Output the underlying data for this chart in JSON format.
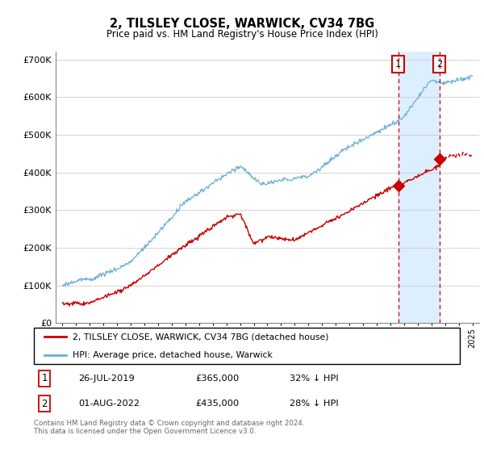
{
  "title": "2, TILSLEY CLOSE, WARWICK, CV34 7BG",
  "subtitle": "Price paid vs. HM Land Registry's House Price Index (HPI)",
  "legend_label_red": "2, TILSLEY CLOSE, WARWICK, CV34 7BG (detached house)",
  "legend_label_blue": "HPI: Average price, detached house, Warwick",
  "footnote": "Contains HM Land Registry data © Crown copyright and database right 2024.\nThis data is licensed under the Open Government Licence v3.0.",
  "transaction1_date": "26-JUL-2019",
  "transaction1_price": "£365,000",
  "transaction1_hpi": "32% ↓ HPI",
  "transaction2_date": "01-AUG-2022",
  "transaction2_price": "£435,000",
  "transaction2_hpi": "28% ↓ HPI",
  "hpi_color": "#6baed6",
  "price_color": "#cc0000",
  "shade_color": "#ddeeff",
  "marker1_x": 2019.57,
  "marker1_y": 365000,
  "marker2_x": 2022.58,
  "marker2_y": 435000,
  "ylim": [
    0,
    720000
  ],
  "xlim_start": 1994.5,
  "xlim_end": 2025.5
}
